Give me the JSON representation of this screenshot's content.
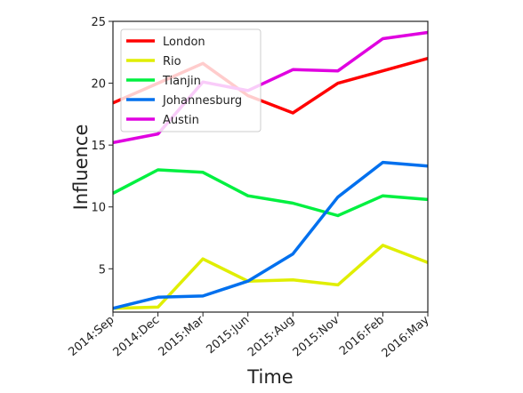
{
  "chart_data": {
    "type": "line",
    "xlabel": "Time",
    "ylabel": "Influence",
    "categories": [
      "2014:Sep",
      "2014:Dec",
      "2015:Mar",
      "2015:Jun",
      "2015:Aug",
      "2015:Nov",
      "2016:Feb",
      "2016:May"
    ],
    "ylim": [
      1.5,
      25
    ],
    "yticks": [
      5,
      10,
      15,
      20,
      25
    ],
    "grid": false,
    "legend_position": "top-left",
    "series": [
      {
        "name": "London",
        "color": "#ff0000",
        "values": [
          18.4,
          20.0,
          21.6,
          19.0,
          17.6,
          20.0,
          21.0,
          22.0
        ]
      },
      {
        "name": "Rio",
        "color": "#e0ee00",
        "values": [
          1.8,
          1.9,
          5.8,
          4.0,
          4.1,
          3.7,
          6.9,
          5.5
        ]
      },
      {
        "name": "Tianjin",
        "color": "#00f040",
        "values": [
          11.1,
          13.0,
          12.8,
          10.9,
          10.3,
          9.3,
          10.9,
          10.6
        ]
      },
      {
        "name": "Johannesburg",
        "color": "#0070ee",
        "values": [
          1.8,
          2.7,
          2.8,
          4.0,
          6.2,
          10.8,
          13.6,
          13.3
        ]
      },
      {
        "name": "Austin",
        "color": "#e000e0",
        "values": [
          15.2,
          15.9,
          20.1,
          19.4,
          21.1,
          21.0,
          23.6,
          24.1
        ]
      }
    ]
  }
}
